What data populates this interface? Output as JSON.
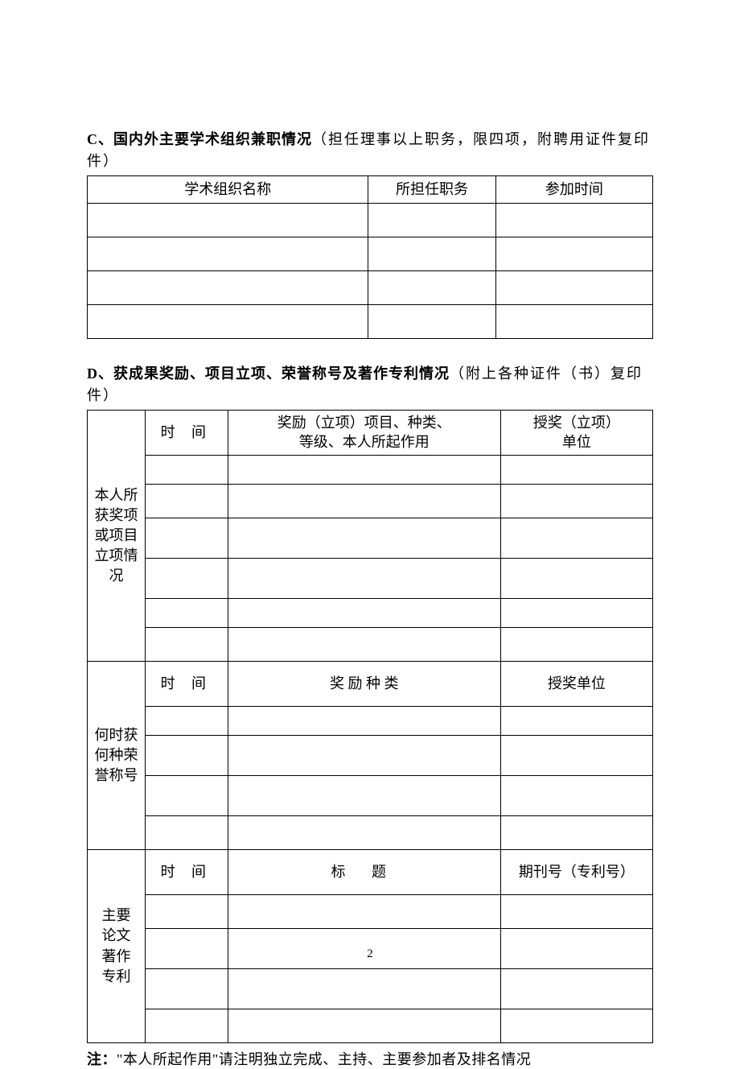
{
  "sectionC": {
    "heading_bold": "C、国内外主要学术组织兼职情况",
    "heading_light": "（担任理事以上职务，限四项，附聘用证件复印件）",
    "columns": [
      "学术组织名称",
      "所担任职务",
      "参加时间"
    ],
    "rows": [
      [
        "",
        "",
        ""
      ],
      [
        "",
        "",
        ""
      ],
      [
        "",
        "",
        ""
      ],
      [
        "",
        "",
        ""
      ]
    ]
  },
  "sectionD": {
    "heading_bold": "D、获成果奖励、项目立项、荣誉称号及著作专利情况",
    "heading_light": "（附上各种证件（书）复印件）",
    "block1": {
      "label": "本人所获奖项或项目立项情况",
      "header_time": "时  间",
      "header_mid": "奖励（立项）项目、种类、\n等级、本人所起作用",
      "header_right": "授奖（立项）\n单位",
      "rows": 6
    },
    "block2": {
      "label": "何时获何种荣誉称号",
      "header_time": "时  间",
      "header_mid": "奖 励 种 类",
      "header_right": "授奖单位",
      "rows": 4
    },
    "block3": {
      "label": "主要论文著作专利",
      "header_time": "时  间",
      "header_mid": "标    题",
      "header_right": "期刊号（专利号）",
      "rows": 4
    }
  },
  "footnote": {
    "bold": "注：",
    "text": "\"本人所起作用\"请注明独立完成、主持、主要参加者及排名情况"
  },
  "pageNumber": "2"
}
